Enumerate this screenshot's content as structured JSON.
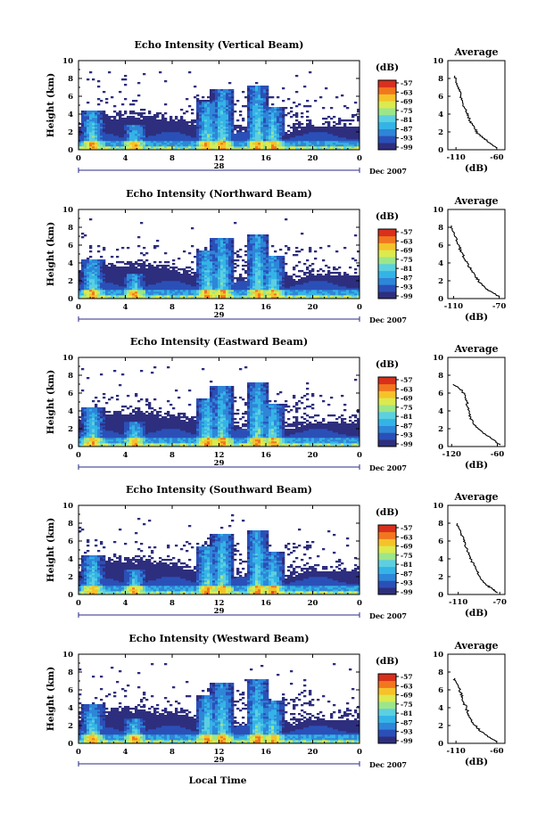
{
  "colors": {
    "colormap": [
      "#2e2e7e",
      "#2a50b8",
      "#2e86d8",
      "#34b4e6",
      "#5cd0e0",
      "#9ce68a",
      "#dcea4e",
      "#f6c22a",
      "#f2761e",
      "#d8301c"
    ],
    "axis": "#000000",
    "day_marker": "#2a2a8a"
  },
  "figure": {
    "xlabel": "Local Time",
    "date_labels": [
      "28",
      "29",
      "29",
      "29",
      "29"
    ],
    "month_label": "Dec 2007"
  },
  "chart_data": [
    {
      "type": "heatmap",
      "title": "Echo Intensity (Vertical Beam)",
      "ylabel": "Height (km)",
      "xlim": [
        0,
        24
      ],
      "ylim": [
        0,
        10
      ],
      "xticks": [
        "0",
        "4",
        "8",
        "12",
        "16",
        "20",
        "0"
      ],
      "yticks": [
        "0",
        "2",
        "4",
        "6",
        "8",
        "10"
      ],
      "colorbar": {
        "unit": "(dB)",
        "ticks": [
          "-57",
          "-63",
          "-69",
          "-75",
          "-81",
          "-87",
          "-93",
          "-99"
        ]
      },
      "average": {
        "title": "Average",
        "xlabel": "(dB)",
        "xticks": [
          "-110",
          "-60"
        ],
        "xlim": [
          -120,
          -50
        ],
        "ylim": [
          0,
          10
        ],
        "profile": [
          [
            -60,
            0.2
          ],
          [
            -66,
            0.6
          ],
          [
            -72,
            1.0
          ],
          [
            -78,
            1.4
          ],
          [
            -83,
            1.8
          ],
          [
            -87,
            2.3
          ],
          [
            -90,
            2.8
          ],
          [
            -93,
            3.2
          ],
          [
            -95,
            3.7
          ],
          [
            -97,
            4.2
          ],
          [
            -100,
            4.8
          ],
          [
            -102,
            5.4
          ],
          [
            -104,
            6.0
          ],
          [
            -106,
            6.6
          ],
          [
            -108,
            7.2
          ],
          [
            -110,
            7.8
          ],
          [
            -112,
            8.3
          ]
        ]
      }
    },
    {
      "type": "heatmap",
      "title": "Echo Intensity (Northward Beam)",
      "ylabel": "Height (km)",
      "xlim": [
        0,
        24
      ],
      "ylim": [
        0,
        10
      ],
      "xticks": [
        "0",
        "4",
        "8",
        "12",
        "16",
        "20",
        "0"
      ],
      "yticks": [
        "0",
        "2",
        "4",
        "6",
        "8",
        "10"
      ],
      "colorbar": {
        "unit": "(dB)",
        "ticks": [
          "-57",
          "-63",
          "-69",
          "-75",
          "-81",
          "-87",
          "-93",
          "-99"
        ]
      },
      "average": {
        "title": "Average",
        "xlabel": "(dB)",
        "xticks": [
          "-110",
          "-70"
        ],
        "xlim": [
          -115,
          -65
        ],
        "ylim": [
          0,
          10
        ],
        "profile": [
          [
            -70,
            0.2
          ],
          [
            -75,
            0.6
          ],
          [
            -80,
            1.0
          ],
          [
            -85,
            1.5
          ],
          [
            -88,
            2.0
          ],
          [
            -91,
            2.5
          ],
          [
            -94,
            3.0
          ],
          [
            -96,
            3.5
          ],
          [
            -98,
            4.0
          ],
          [
            -101,
            4.6
          ],
          [
            -103,
            5.2
          ],
          [
            -105,
            5.8
          ],
          [
            -107,
            6.4
          ],
          [
            -109,
            7.0
          ],
          [
            -111,
            7.6
          ],
          [
            -112,
            8.2
          ]
        ]
      }
    },
    {
      "type": "heatmap",
      "title": "Echo Intensity (Eastward Beam)",
      "ylabel": "Height (km)",
      "xlim": [
        0,
        24
      ],
      "ylim": [
        0,
        10
      ],
      "xticks": [
        "0",
        "4",
        "8",
        "12",
        "16",
        "20",
        "0"
      ],
      "yticks": [
        "0",
        "2",
        "4",
        "6",
        "8",
        "10"
      ],
      "colorbar": {
        "unit": "(dB)",
        "ticks": [
          "-57",
          "-63",
          "-69",
          "-75",
          "-81",
          "-87",
          "-93",
          "-99"
        ]
      },
      "average": {
        "title": "Average",
        "xlabel": "(dB)",
        "xticks": [
          "-120",
          "-60"
        ],
        "xlim": [
          -125,
          -50
        ],
        "ylim": [
          0,
          10
        ],
        "profile": [
          [
            -56,
            0.2
          ],
          [
            -62,
            0.5
          ],
          [
            -68,
            0.9
          ],
          [
            -75,
            1.3
          ],
          [
            -82,
            1.8
          ],
          [
            -88,
            2.3
          ],
          [
            -92,
            2.8
          ],
          [
            -95,
            3.2
          ],
          [
            -97,
            3.8
          ],
          [
            -99,
            4.4
          ],
          [
            -100,
            5.0
          ],
          [
            -102,
            5.6
          ],
          [
            -106,
            6.2
          ],
          [
            -112,
            6.7
          ],
          [
            -118,
            7.0
          ]
        ]
      }
    },
    {
      "type": "heatmap",
      "title": "Echo Intensity (Southward Beam)",
      "ylabel": "Height (km)",
      "xlim": [
        0,
        24
      ],
      "ylim": [
        0,
        10
      ],
      "xticks": [
        "0",
        "4",
        "8",
        "12",
        "16",
        "20",
        "0"
      ],
      "yticks": [
        "0",
        "2",
        "4",
        "6",
        "8",
        "10"
      ],
      "colorbar": {
        "unit": "(dB)",
        "ticks": [
          "-57",
          "-63",
          "-69",
          "-75",
          "-81",
          "-87",
          "-93",
          "-99"
        ]
      },
      "average": {
        "title": "Average",
        "xlabel": "(dB)",
        "xticks": [
          "-110",
          "-70"
        ],
        "xlim": [
          -120,
          -65
        ],
        "ylim": [
          0,
          10
        ],
        "profile": [
          [
            -72,
            0.2
          ],
          [
            -77,
            0.6
          ],
          [
            -82,
            1.0
          ],
          [
            -86,
            1.5
          ],
          [
            -89,
            2.0
          ],
          [
            -92,
            2.6
          ],
          [
            -94,
            3.2
          ],
          [
            -97,
            3.8
          ],
          [
            -99,
            4.4
          ],
          [
            -101,
            5.0
          ],
          [
            -103,
            5.6
          ],
          [
            -105,
            6.2
          ],
          [
            -107,
            6.8
          ],
          [
            -109,
            7.4
          ],
          [
            -111,
            8.0
          ]
        ]
      }
    },
    {
      "type": "heatmap",
      "title": "Echo Intensity (Westward Beam)",
      "ylabel": "Height (km)",
      "xlim": [
        0,
        24
      ],
      "ylim": [
        0,
        10
      ],
      "xticks": [
        "0",
        "4",
        "8",
        "12",
        "16",
        "20",
        "0"
      ],
      "yticks": [
        "0",
        "2",
        "4",
        "6",
        "8",
        "10"
      ],
      "colorbar": {
        "unit": "(dB)",
        "ticks": [
          "-57",
          "-63",
          "-69",
          "-75",
          "-81",
          "-87",
          "-93",
          "-99"
        ]
      },
      "average": {
        "title": "Average",
        "xlabel": "(dB)",
        "xticks": [
          "-110",
          "-60"
        ],
        "xlim": [
          -120,
          -50
        ],
        "ylim": [
          0,
          10
        ],
        "profile": [
          [
            -60,
            0.2
          ],
          [
            -66,
            0.5
          ],
          [
            -72,
            0.9
          ],
          [
            -79,
            1.3
          ],
          [
            -85,
            1.8
          ],
          [
            -89,
            2.3
          ],
          [
            -92,
            2.8
          ],
          [
            -95,
            3.3
          ],
          [
            -97,
            3.9
          ],
          [
            -100,
            4.5
          ],
          [
            -102,
            5.1
          ],
          [
            -104,
            5.7
          ],
          [
            -107,
            6.3
          ],
          [
            -110,
            6.9
          ],
          [
            -112,
            7.3
          ]
        ]
      }
    }
  ]
}
